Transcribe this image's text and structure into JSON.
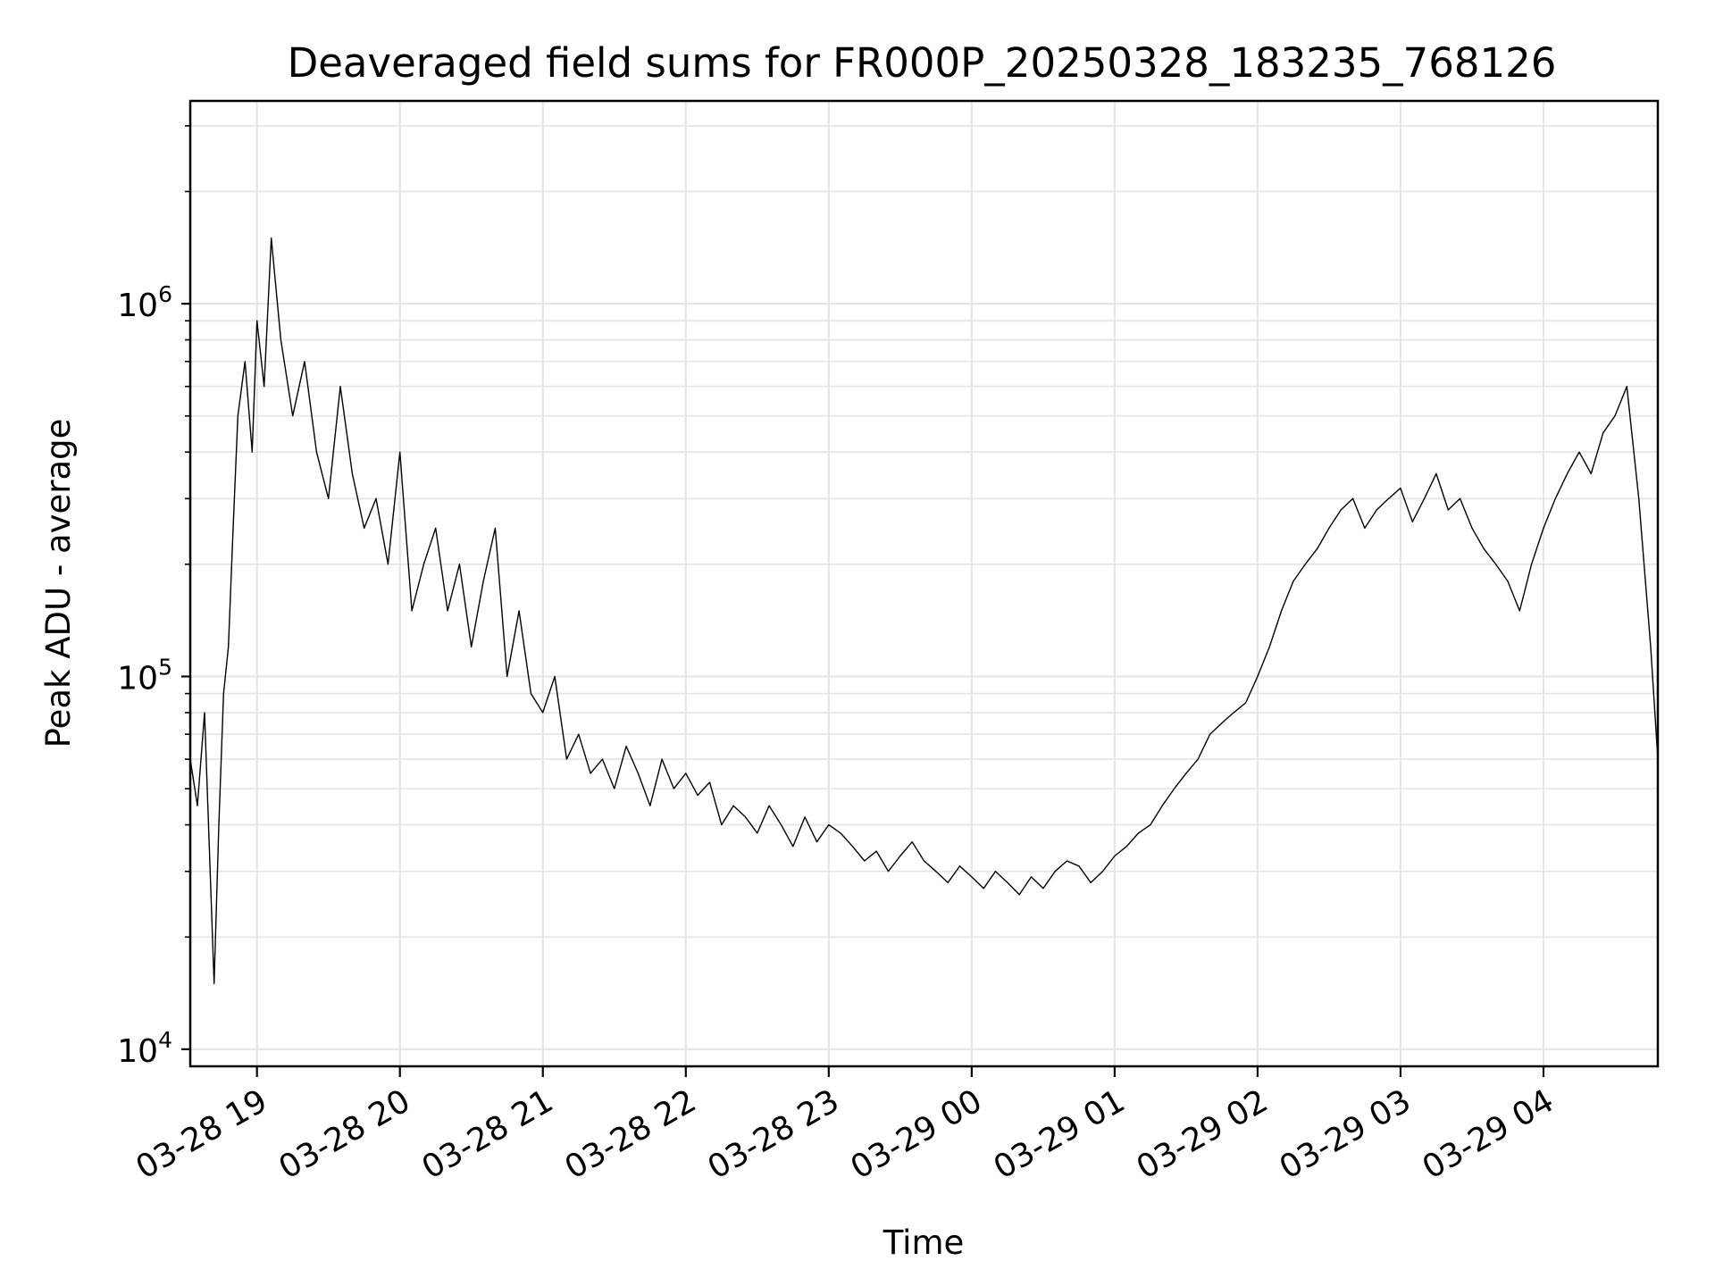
{
  "chart_data": {
    "type": "line",
    "title": "Deaveraged field sums for FR000P_20250328_183235_768126",
    "xlabel": "Time",
    "ylabel": "Peak ADU - average",
    "yscale": "log",
    "ylim": [
      9000,
      3500000
    ],
    "xlim": [
      "2025-03-28 18:32",
      "2025-03-29 04:48"
    ],
    "grid": true,
    "line_color": "#000000",
    "x_ticks": [
      {
        "value": "2025-03-28 19:00",
        "label": "03-28 19"
      },
      {
        "value": "2025-03-28 20:00",
        "label": "03-28 20"
      },
      {
        "value": "2025-03-28 21:00",
        "label": "03-28 21"
      },
      {
        "value": "2025-03-28 22:00",
        "label": "03-28 22"
      },
      {
        "value": "2025-03-28 23:00",
        "label": "03-28 23"
      },
      {
        "value": "2025-03-29 00:00",
        "label": "03-29 00"
      },
      {
        "value": "2025-03-29 01:00",
        "label": "03-29 01"
      },
      {
        "value": "2025-03-29 02:00",
        "label": "03-29 02"
      },
      {
        "value": "2025-03-29 03:00",
        "label": "03-29 03"
      },
      {
        "value": "2025-03-29 04:00",
        "label": "03-29 04"
      }
    ],
    "y_ticks": [
      {
        "value": 10000,
        "base": "10",
        "exp": "4"
      },
      {
        "value": 100000,
        "base": "10",
        "exp": "5"
      },
      {
        "value": 1000000,
        "base": "10",
        "exp": "6"
      }
    ],
    "series": [
      {
        "x": [
          "2025-03-28 18:32",
          "2025-03-28 18:35",
          "2025-03-28 18:38",
          "2025-03-28 18:40",
          "2025-03-28 18:42",
          "2025-03-28 18:44",
          "2025-03-28 18:46",
          "2025-03-28 18:48",
          "2025-03-28 18:50",
          "2025-03-28 18:52",
          "2025-03-28 18:55",
          "2025-03-28 18:58",
          "2025-03-28 19:00",
          "2025-03-28 19:03",
          "2025-03-28 19:06",
          "2025-03-28 19:10",
          "2025-03-28 19:15",
          "2025-03-28 19:20",
          "2025-03-28 19:25",
          "2025-03-28 19:30",
          "2025-03-28 19:35",
          "2025-03-28 19:40",
          "2025-03-28 19:45",
          "2025-03-28 19:50",
          "2025-03-28 19:55",
          "2025-03-28 20:00",
          "2025-03-28 20:05",
          "2025-03-28 20:10",
          "2025-03-28 20:15",
          "2025-03-28 20:20",
          "2025-03-28 20:25",
          "2025-03-28 20:30",
          "2025-03-28 20:35",
          "2025-03-28 20:40",
          "2025-03-28 20:45",
          "2025-03-28 20:50",
          "2025-03-28 20:55",
          "2025-03-28 21:00",
          "2025-03-28 21:05",
          "2025-03-28 21:10",
          "2025-03-28 21:15",
          "2025-03-28 21:20",
          "2025-03-28 21:25",
          "2025-03-28 21:30",
          "2025-03-28 21:35",
          "2025-03-28 21:40",
          "2025-03-28 21:45",
          "2025-03-28 21:50",
          "2025-03-28 21:55",
          "2025-03-28 22:00",
          "2025-03-28 22:05",
          "2025-03-28 22:10",
          "2025-03-28 22:15",
          "2025-03-28 22:20",
          "2025-03-28 22:25",
          "2025-03-28 22:30",
          "2025-03-28 22:35",
          "2025-03-28 22:40",
          "2025-03-28 22:45",
          "2025-03-28 22:50",
          "2025-03-28 22:55",
          "2025-03-28 23:00",
          "2025-03-28 23:05",
          "2025-03-28 23:10",
          "2025-03-28 23:15",
          "2025-03-28 23:20",
          "2025-03-28 23:25",
          "2025-03-28 23:30",
          "2025-03-28 23:35",
          "2025-03-28 23:40",
          "2025-03-28 23:45",
          "2025-03-28 23:50",
          "2025-03-28 23:55",
          "2025-03-29 00:00",
          "2025-03-29 00:05",
          "2025-03-29 00:10",
          "2025-03-29 00:15",
          "2025-03-29 00:20",
          "2025-03-29 00:25",
          "2025-03-29 00:30",
          "2025-03-29 00:35",
          "2025-03-29 00:40",
          "2025-03-29 00:45",
          "2025-03-29 00:50",
          "2025-03-29 00:55",
          "2025-03-29 01:00",
          "2025-03-29 01:05",
          "2025-03-29 01:10",
          "2025-03-29 01:15",
          "2025-03-29 01:20",
          "2025-03-29 01:25",
          "2025-03-29 01:30",
          "2025-03-29 01:35",
          "2025-03-29 01:40",
          "2025-03-29 01:45",
          "2025-03-29 01:50",
          "2025-03-29 01:55",
          "2025-03-29 02:00",
          "2025-03-29 02:05",
          "2025-03-29 02:10",
          "2025-03-29 02:15",
          "2025-03-29 02:20",
          "2025-03-29 02:25",
          "2025-03-29 02:30",
          "2025-03-29 02:35",
          "2025-03-29 02:40",
          "2025-03-29 02:45",
          "2025-03-29 02:50",
          "2025-03-29 02:55",
          "2025-03-29 03:00",
          "2025-03-29 03:05",
          "2025-03-29 03:10",
          "2025-03-29 03:15",
          "2025-03-29 03:20",
          "2025-03-29 03:25",
          "2025-03-29 03:30",
          "2025-03-29 03:35",
          "2025-03-29 03:40",
          "2025-03-29 03:45",
          "2025-03-29 03:50",
          "2025-03-29 03:55",
          "2025-03-29 04:00",
          "2025-03-29 04:05",
          "2025-03-29 04:10",
          "2025-03-29 04:15",
          "2025-03-29 04:20",
          "2025-03-29 04:25",
          "2025-03-29 04:30",
          "2025-03-29 04:35",
          "2025-03-29 04:40",
          "2025-03-29 04:45",
          "2025-03-29 04:48"
        ],
        "y": [
          60000,
          45000,
          80000,
          35000,
          15000,
          40000,
          90000,
          120000,
          250000,
          500000,
          700000,
          400000,
          900000,
          600000,
          1500000,
          800000,
          500000,
          700000,
          400000,
          300000,
          600000,
          350000,
          250000,
          300000,
          200000,
          400000,
          150000,
          200000,
          250000,
          150000,
          200000,
          120000,
          180000,
          250000,
          100000,
          150000,
          90000,
          80000,
          100000,
          60000,
          70000,
          55000,
          60000,
          50000,
          65000,
          55000,
          45000,
          60000,
          50000,
          55000,
          48000,
          52000,
          40000,
          45000,
          42000,
          38000,
          45000,
          40000,
          35000,
          42000,
          36000,
          40000,
          38000,
          35000,
          32000,
          34000,
          30000,
          33000,
          36000,
          32000,
          30000,
          28000,
          31000,
          29000,
          27000,
          30000,
          28000,
          26000,
          29000,
          27000,
          30000,
          32000,
          31000,
          28000,
          30000,
          33000,
          35000,
          38000,
          40000,
          45000,
          50000,
          55000,
          60000,
          70000,
          75000,
          80000,
          85000,
          100000,
          120000,
          150000,
          180000,
          200000,
          220000,
          250000,
          280000,
          300000,
          250000,
          280000,
          300000,
          320000,
          260000,
          300000,
          350000,
          280000,
          300000,
          250000,
          220000,
          200000,
          180000,
          150000,
          200000,
          250000,
          300000,
          350000,
          400000,
          350000,
          450000,
          500000,
          600000,
          300000,
          120000,
          60000
        ]
      }
    ]
  }
}
